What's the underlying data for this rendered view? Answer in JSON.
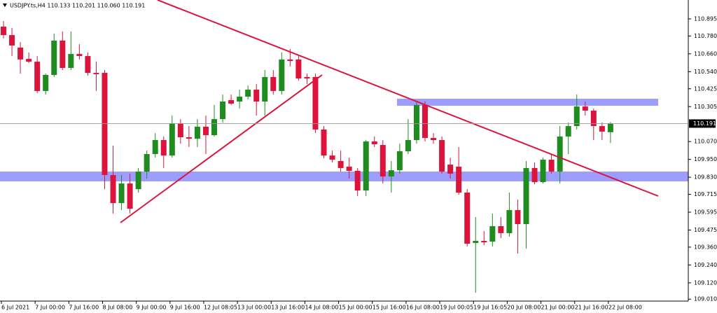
{
  "chart_data": {
    "type": "candlestick",
    "title": "USDJPY.ts,H4  110.133 110.201 110.060 110.191",
    "categories": [
      "6 Jul 2021",
      null,
      null,
      null,
      "7 Jul 00:00",
      null,
      null,
      null,
      "7 Jul 16:00",
      null,
      null,
      null,
      "8 Jul 08:00",
      null,
      null,
      null,
      "9 Jul 00:00",
      null,
      null,
      null,
      "9 Jul 16:00",
      null,
      null,
      null,
      "12 Jul 08:05",
      null,
      null,
      null,
      "13 Jul 00:00",
      null,
      null,
      null,
      "13 Jul 16:00",
      null,
      null,
      null,
      "14 Jul 08:00",
      null,
      null,
      null,
      "15 Jul 00:00",
      null,
      null,
      null,
      "15 Jul 16:00",
      null,
      null,
      null,
      "16 Jul 08:00",
      null,
      null,
      null,
      "19 Jul 00:05",
      null,
      null,
      null,
      "19 Jul 16:05",
      null,
      null,
      null,
      "20 Jul 08:00",
      null,
      null,
      null,
      "21 Jul 00:00",
      null,
      null,
      null,
      "21 Jul 16:00",
      null,
      null,
      null,
      "22 Jul 08:00"
    ],
    "open": [
      110.843,
      110.786,
      110.702,
      110.626,
      110.607,
      110.41,
      110.518,
      110.749,
      110.565,
      110.659,
      110.645,
      110.532,
      110.532,
      109.845,
      109.656,
      109.788,
      109.75,
      109.868,
      109.986,
      110.08,
      109.976,
      110.191,
      110.099,
      110.089,
      110.17,
      110.113,
      110.221,
      110.349,
      110.339,
      110.372,
      110.419,
      110.339,
      110.504,
      110.41,
      110.622,
      110.622,
      110.504,
      110.504,
      110.151,
      109.976,
      109.939,
      109.901,
      109.873,
      109.741,
      110.071,
      110.047,
      109.835,
      109.877,
      110.005,
      110.08,
      110.316,
      110.094,
      110.08,
      109.915,
      109.901,
      109.727,
      109.388,
      109.402,
      109.397,
      109.501,
      109.454,
      109.609,
      109.515,
      109.892,
      109.797,
      109.948,
      109.868,
      110.104,
      110.174,
      110.306,
      110.278,
      110.174,
      110.133
    ],
    "high": [
      110.881,
      110.834,
      110.739,
      110.669,
      110.645,
      110.527,
      110.796,
      110.81,
      110.81,
      110.725,
      110.669,
      110.607,
      110.551,
      110.042,
      109.845,
      109.854,
      109.892,
      110.009,
      110.127,
      110.104,
      110.245,
      110.221,
      110.174,
      110.221,
      110.245,
      110.316,
      110.386,
      110.386,
      110.419,
      110.447,
      110.457,
      110.551,
      110.551,
      110.669,
      110.692,
      110.645,
      110.527,
      110.527,
      110.174,
      110.009,
      110.009,
      109.962,
      109.892,
      110.08,
      110.104,
      110.08,
      109.939,
      110.056,
      110.221,
      110.339,
      110.339,
      110.127,
      110.104,
      109.962,
      110.033,
      109.75,
      109.562,
      109.468,
      109.586,
      109.562,
      109.727,
      109.68,
      109.939,
      109.929,
      109.962,
      109.986,
      110.174,
      110.198,
      110.386,
      110.339,
      110.292,
      110.198,
      110.201
    ],
    "low": [
      110.763,
      110.645,
      110.527,
      110.598,
      110.396,
      110.386,
      110.504,
      110.551,
      110.551,
      110.622,
      110.513,
      110.41,
      109.75,
      109.586,
      109.609,
      109.586,
      109.727,
      109.821,
      109.962,
      109.892,
      109.962,
      110.056,
      110.033,
      110.033,
      109.986,
      110.104,
      110.198,
      110.316,
      110.292,
      110.353,
      110.245,
      110.245,
      110.386,
      110.386,
      110.575,
      110.48,
      110.457,
      110.127,
      109.958,
      109.929,
      109.868,
      109.821,
      109.703,
      109.703,
      110.033,
      109.788,
      109.727,
      109.854,
      109.986,
      110.056,
      110.071,
      110.056,
      109.854,
      109.821,
      109.713,
      109.364,
      109.053,
      109.374,
      109.364,
      109.421,
      109.43,
      109.317,
      109.35,
      109.783,
      109.788,
      109.854,
      109.788,
      109.986,
      110.151,
      110.245,
      110.08,
      110.08,
      110.06
    ],
    "close": [
      110.786,
      110.716,
      110.622,
      110.607,
      110.41,
      110.518,
      110.749,
      110.565,
      110.659,
      110.645,
      110.532,
      110.523,
      109.845,
      109.656,
      109.788,
      109.618,
      109.868,
      109.986,
      110.08,
      109.976,
      110.191,
      110.099,
      110.089,
      110.17,
      110.113,
      110.221,
      110.339,
      110.325,
      110.372,
      110.419,
      110.339,
      110.504,
      110.41,
      110.622,
      110.612,
      110.494,
      110.494,
      110.151,
      109.976,
      109.948,
      109.892,
      109.873,
      109.741,
      110.071,
      110.052,
      109.835,
      109.877,
      110.005,
      110.08,
      110.316,
      110.094,
      110.08,
      109.868,
      109.854,
      109.727,
      109.383,
      109.402,
      109.392,
      109.501,
      109.454,
      109.609,
      109.515,
      109.892,
      109.797,
      109.948,
      109.868,
      110.104,
      110.174,
      110.306,
      110.278,
      110.174,
      110.137,
      110.191
    ],
    "up_color": "#1e8c1e",
    "down_color": "#dc143c",
    "ylim": [
      108.997,
      111.022
    ],
    "yticks": [
      110.895,
      {
        "value": 110.78,
        "label": "110.780"
      },
      {
        "value": 110.66,
        "label": "110.660"
      },
      {
        "value": 110.54,
        "label": "110.540"
      },
      110.425,
      110.305,
      {
        "value": 110.07,
        "label": "110.070"
      },
      {
        "value": 109.95,
        "label": "109.950"
      },
      {
        "value": 109.83,
        "label": "109.830"
      },
      109.715,
      109.595,
      109.475,
      {
        "value": 109.36,
        "label": "109.360"
      },
      {
        "value": 109.24,
        "label": "109.240"
      },
      {
        "value": 109.12,
        "label": "109.120"
      },
      {
        "value": 109.01,
        "label": "109.010"
      }
    ]
  }
}
